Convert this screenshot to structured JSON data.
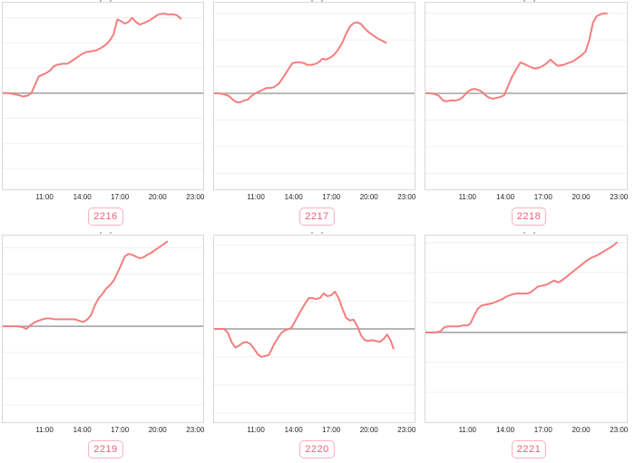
{
  "colors": {
    "line": "#f47e7e",
    "zero_line": "#ababab",
    "grid_line": "#f0f0f0",
    "panel_border": "#d9d9d9",
    "badge_border": "#f7b0c0",
    "badge_text": "#e8607e",
    "tick_text": "#262626"
  },
  "axis": {
    "xlim": [
      7.6,
      23.7
    ],
    "tick_hours": [
      11,
      14,
      17,
      20,
      23
    ],
    "tick_labels": [
      "11:00",
      "14:00",
      "17:00",
      "20:00",
      "23:00"
    ],
    "grid_step": 30,
    "grid_on": true
  },
  "chart_data": [
    {
      "type": "line",
      "badge": "2216",
      "ylim": [
        -115,
        108
      ],
      "points": [
        [
          7.6,
          0
        ],
        [
          8.0,
          0
        ],
        [
          8.4,
          -1
        ],
        [
          8.8,
          -2
        ],
        [
          9.2,
          -4
        ],
        [
          9.6,
          -3
        ],
        [
          9.9,
          0
        ],
        [
          10.2,
          10
        ],
        [
          10.5,
          20
        ],
        [
          10.8,
          22
        ],
        [
          11.1,
          24
        ],
        [
          11.4,
          27
        ],
        [
          11.7,
          32
        ],
        [
          12.0,
          34
        ],
        [
          12.4,
          35
        ],
        [
          12.8,
          35
        ],
        [
          13.2,
          39
        ],
        [
          13.6,
          43
        ],
        [
          14.0,
          47
        ],
        [
          14.3,
          49
        ],
        [
          14.7,
          50
        ],
        [
          15.1,
          51
        ],
        [
          15.5,
          54
        ],
        [
          15.9,
          58
        ],
        [
          16.2,
          63
        ],
        [
          16.5,
          70
        ],
        [
          16.8,
          88
        ],
        [
          17.1,
          86
        ],
        [
          17.4,
          83
        ],
        [
          17.7,
          85
        ],
        [
          18.0,
          90
        ],
        [
          18.3,
          85
        ],
        [
          18.6,
          82
        ],
        [
          19.0,
          84
        ],
        [
          19.4,
          87
        ],
        [
          19.8,
          91
        ],
        [
          20.1,
          94
        ],
        [
          20.5,
          95
        ],
        [
          20.9,
          94
        ],
        [
          21.3,
          94
        ],
        [
          21.6,
          93
        ],
        [
          21.9,
          89
        ]
      ]
    },
    {
      "type": "line",
      "badge": "2217",
      "ylim": [
        -108,
        102
      ],
      "points": [
        [
          7.6,
          0
        ],
        [
          8.0,
          0
        ],
        [
          8.4,
          -1
        ],
        [
          8.8,
          -3
        ],
        [
          9.1,
          -7
        ],
        [
          9.4,
          -10
        ],
        [
          9.7,
          -10
        ],
        [
          10.0,
          -8
        ],
        [
          10.3,
          -7
        ],
        [
          10.6,
          -3
        ],
        [
          10.9,
          0
        ],
        [
          11.2,
          2
        ],
        [
          11.5,
          4
        ],
        [
          11.8,
          6
        ],
        [
          12.1,
          6
        ],
        [
          12.4,
          7
        ],
        [
          12.8,
          11
        ],
        [
          13.2,
          19
        ],
        [
          13.6,
          28
        ],
        [
          13.9,
          34
        ],
        [
          14.2,
          35
        ],
        [
          14.5,
          35
        ],
        [
          14.8,
          34
        ],
        [
          15.1,
          32
        ],
        [
          15.4,
          32
        ],
        [
          15.7,
          33
        ],
        [
          16.0,
          35
        ],
        [
          16.3,
          39
        ],
        [
          16.6,
          38
        ],
        [
          16.9,
          40
        ],
        [
          17.2,
          43
        ],
        [
          17.5,
          48
        ],
        [
          17.9,
          57
        ],
        [
          18.2,
          67
        ],
        [
          18.5,
          75
        ],
        [
          18.8,
          79
        ],
        [
          19.1,
          80
        ],
        [
          19.4,
          78
        ],
        [
          19.7,
          73
        ],
        [
          20.0,
          69
        ],
        [
          20.3,
          66
        ],
        [
          20.7,
          62
        ],
        [
          21.0,
          60
        ],
        [
          21.4,
          57
        ]
      ]
    },
    {
      "type": "line",
      "badge": "2218",
      "ylim": [
        -108,
        102
      ],
      "points": [
        [
          7.6,
          0
        ],
        [
          8.0,
          0
        ],
        [
          8.4,
          -1
        ],
        [
          8.7,
          -3
        ],
        [
          9.0,
          -8
        ],
        [
          9.3,
          -9
        ],
        [
          9.6,
          -8
        ],
        [
          10.0,
          -8
        ],
        [
          10.3,
          -7
        ],
        [
          10.6,
          -4
        ],
        [
          10.9,
          1
        ],
        [
          11.2,
          4
        ],
        [
          11.5,
          5
        ],
        [
          11.8,
          4
        ],
        [
          12.1,
          2
        ],
        [
          12.4,
          -2
        ],
        [
          12.7,
          -5
        ],
        [
          13.0,
          -6
        ],
        [
          13.3,
          -5
        ],
        [
          13.6,
          -4
        ],
        [
          13.9,
          -2
        ],
        [
          14.2,
          8
        ],
        [
          14.5,
          18
        ],
        [
          14.9,
          28
        ],
        [
          15.2,
          35
        ],
        [
          15.5,
          33
        ],
        [
          15.8,
          31
        ],
        [
          16.1,
          29
        ],
        [
          16.4,
          28
        ],
        [
          16.7,
          29
        ],
        [
          17.0,
          31
        ],
        [
          17.3,
          34
        ],
        [
          17.6,
          38
        ],
        [
          17.9,
          34
        ],
        [
          18.2,
          31
        ],
        [
          18.6,
          32
        ],
        [
          19.0,
          34
        ],
        [
          19.4,
          36
        ],
        [
          19.8,
          40
        ],
        [
          20.1,
          43
        ],
        [
          20.4,
          47
        ],
        [
          20.7,
          60
        ],
        [
          21.0,
          80
        ],
        [
          21.3,
          87
        ],
        [
          21.6,
          89
        ],
        [
          21.9,
          90
        ],
        [
          22.1,
          90
        ]
      ]
    },
    {
      "type": "line",
      "badge": "2219",
      "ylim": [
        -110,
        104
      ],
      "points": [
        [
          7.6,
          0
        ],
        [
          8.0,
          0
        ],
        [
          8.4,
          0
        ],
        [
          8.8,
          0
        ],
        [
          9.2,
          -1
        ],
        [
          9.5,
          -3
        ],
        [
          9.8,
          1
        ],
        [
          10.1,
          4
        ],
        [
          10.4,
          6
        ],
        [
          10.8,
          8
        ],
        [
          11.1,
          9
        ],
        [
          11.4,
          9
        ],
        [
          11.8,
          8
        ],
        [
          12.2,
          8
        ],
        [
          12.6,
          8
        ],
        [
          13.0,
          8
        ],
        [
          13.4,
          8
        ],
        [
          13.8,
          6
        ],
        [
          14.1,
          5
        ],
        [
          14.4,
          8
        ],
        [
          14.7,
          13
        ],
        [
          15.0,
          24
        ],
        [
          15.3,
          32
        ],
        [
          15.6,
          37
        ],
        [
          15.9,
          43
        ],
        [
          16.2,
          47
        ],
        [
          16.5,
          52
        ],
        [
          16.8,
          61
        ],
        [
          17.1,
          70
        ],
        [
          17.4,
          80
        ],
        [
          17.7,
          83
        ],
        [
          18.0,
          82
        ],
        [
          18.3,
          80
        ],
        [
          18.6,
          78
        ],
        [
          18.9,
          79
        ],
        [
          19.2,
          82
        ],
        [
          19.5,
          84
        ],
        [
          19.8,
          87
        ],
        [
          20.1,
          90
        ],
        [
          20.4,
          93
        ],
        [
          20.8,
          97
        ]
      ]
    },
    {
      "type": "line",
      "badge": "2220",
      "ylim": [
        -100,
        100
      ],
      "points": [
        [
          7.6,
          0
        ],
        [
          8.0,
          0
        ],
        [
          8.4,
          0
        ],
        [
          8.7,
          -4
        ],
        [
          9.0,
          -14
        ],
        [
          9.3,
          -20
        ],
        [
          9.6,
          -18
        ],
        [
          9.9,
          -15
        ],
        [
          10.2,
          -14
        ],
        [
          10.5,
          -16
        ],
        [
          10.8,
          -21
        ],
        [
          11.1,
          -27
        ],
        [
          11.4,
          -30
        ],
        [
          11.7,
          -29
        ],
        [
          12.0,
          -28
        ],
        [
          12.4,
          -17
        ],
        [
          12.8,
          -8
        ],
        [
          13.1,
          -3
        ],
        [
          13.4,
          -1
        ],
        [
          13.8,
          1
        ],
        [
          14.1,
          8
        ],
        [
          14.5,
          18
        ],
        [
          14.9,
          27
        ],
        [
          15.2,
          33
        ],
        [
          15.5,
          33
        ],
        [
          15.8,
          32
        ],
        [
          16.1,
          33
        ],
        [
          16.4,
          38
        ],
        [
          16.7,
          35
        ],
        [
          17.0,
          36
        ],
        [
          17.3,
          40
        ],
        [
          17.6,
          33
        ],
        [
          17.9,
          22
        ],
        [
          18.2,
          12
        ],
        [
          18.5,
          9
        ],
        [
          18.8,
          10
        ],
        [
          19.1,
          3
        ],
        [
          19.4,
          -7
        ],
        [
          19.7,
          -12
        ],
        [
          20.0,
          -13
        ],
        [
          20.3,
          -12
        ],
        [
          20.6,
          -13
        ],
        [
          20.9,
          -14
        ],
        [
          21.2,
          -11
        ],
        [
          21.5,
          -6
        ],
        [
          21.8,
          -13
        ],
        [
          22.0,
          -21
        ]
      ]
    },
    {
      "type": "line",
      "badge": "2221",
      "ylim": [
        -90,
        97
      ],
      "points": [
        [
          7.6,
          0
        ],
        [
          8.0,
          0
        ],
        [
          8.4,
          0
        ],
        [
          8.8,
          1
        ],
        [
          9.1,
          5
        ],
        [
          9.4,
          6
        ],
        [
          9.8,
          6
        ],
        [
          10.2,
          6
        ],
        [
          10.6,
          7
        ],
        [
          11.0,
          7
        ],
        [
          11.2,
          9
        ],
        [
          11.5,
          17
        ],
        [
          11.8,
          24
        ],
        [
          12.1,
          27
        ],
        [
          12.5,
          28
        ],
        [
          12.9,
          29
        ],
        [
          13.3,
          31
        ],
        [
          13.7,
          33
        ],
        [
          14.1,
          36
        ],
        [
          14.5,
          38
        ],
        [
          14.9,
          39
        ],
        [
          15.3,
          39
        ],
        [
          15.7,
          39
        ],
        [
          16.0,
          40
        ],
        [
          16.3,
          43
        ],
        [
          16.6,
          46
        ],
        [
          17.0,
          47
        ],
        [
          17.3,
          48
        ],
        [
          17.6,
          50
        ],
        [
          17.9,
          52
        ],
        [
          18.2,
          50
        ],
        [
          18.5,
          52
        ],
        [
          18.9,
          56
        ],
        [
          19.3,
          60
        ],
        [
          19.7,
          64
        ],
        [
          20.1,
          68
        ],
        [
          20.5,
          72
        ],
        [
          20.9,
          75
        ],
        [
          21.3,
          77
        ],
        [
          21.7,
          80
        ],
        [
          22.1,
          83
        ],
        [
          22.5,
          86
        ],
        [
          22.9,
          90
        ]
      ]
    }
  ]
}
